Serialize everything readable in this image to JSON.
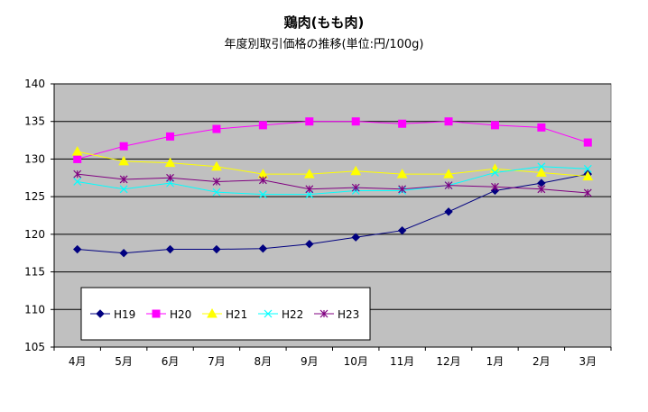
{
  "chart_data": {
    "type": "line",
    "title": "鶏肉(もも肉)",
    "subtitle": "年度別取引価格の推移(単位:円/100g)",
    "xlabel": "",
    "ylabel": "",
    "categories": [
      "4月",
      "5月",
      "6月",
      "7月",
      "8月",
      "9月",
      "10月",
      "11月",
      "12月",
      "1月",
      "2月",
      "3月"
    ],
    "ylim": [
      105,
      140
    ],
    "yticks": [
      105,
      110,
      115,
      120,
      125,
      130,
      135,
      140
    ],
    "grid": true,
    "legend": "bottom-left",
    "background": "#c0c0c0",
    "series": [
      {
        "name": "H19",
        "color": "#000080",
        "marker": "diamond",
        "values": [
          118.0,
          117.5,
          118.0,
          118.0,
          118.1,
          118.7,
          119.6,
          120.5,
          123.0,
          125.8,
          126.8,
          128.0
        ]
      },
      {
        "name": "H20",
        "color": "#ff00ff",
        "marker": "square",
        "values": [
          130.0,
          131.7,
          133.0,
          134.0,
          134.5,
          135.0,
          135.0,
          134.7,
          135.0,
          134.5,
          134.2,
          132.2
        ]
      },
      {
        "name": "H21",
        "color": "#ffff00",
        "marker": "triangle",
        "values": [
          131.0,
          129.7,
          129.5,
          129.0,
          128.0,
          128.0,
          128.4,
          128.0,
          128.0,
          128.7,
          128.2,
          127.7
        ]
      },
      {
        "name": "H22",
        "color": "#00ffff",
        "marker": "x",
        "values": [
          127.0,
          126.0,
          126.8,
          125.6,
          125.3,
          125.3,
          125.8,
          125.8,
          126.5,
          128.2,
          129.0,
          128.7
        ]
      },
      {
        "name": "H23",
        "color": "#800080",
        "marker": "star",
        "values": [
          128.0,
          127.3,
          127.5,
          127.0,
          127.2,
          126.0,
          126.2,
          126.0,
          126.5,
          126.3,
          126.0,
          125.5
        ]
      }
    ]
  }
}
